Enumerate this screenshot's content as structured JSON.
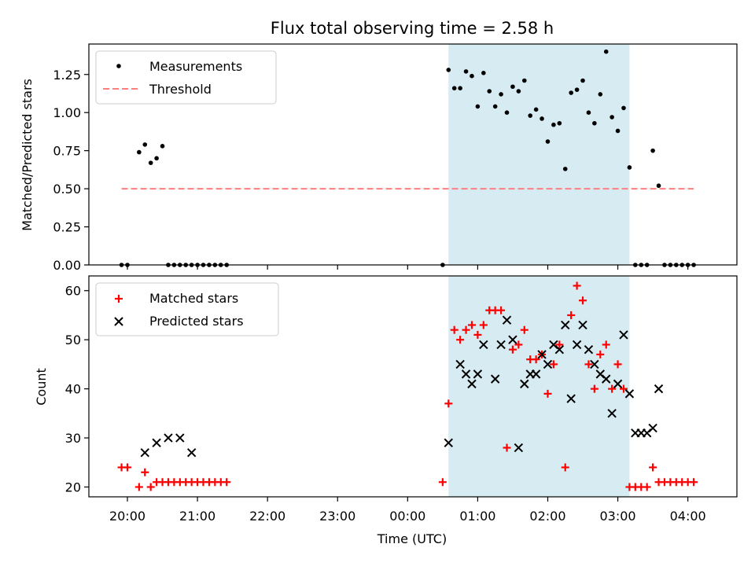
{
  "chart_data": [
    {
      "type": "scatter",
      "title": "Flux total observing time = 2.58 h",
      "xlabel": "",
      "ylabel": "Matched/Predicted stars",
      "x_unit": "minutes after 00:00 UTC (negative = previous day)",
      "xlim": [
        -273,
        282
      ],
      "ylim": [
        0,
        1.45
      ],
      "yticks": [
        0.0,
        0.25,
        0.5,
        0.75,
        1.0,
        1.25
      ],
      "ytick_labels": [
        "0.00",
        "0.25",
        "0.50",
        "0.75",
        "1.00",
        "1.25"
      ],
      "shaded_region": {
        "x_start": 35,
        "x_end": 190,
        "color": "#add8e6"
      },
      "legend_position": "upper left",
      "series": [
        {
          "name": "Measurements",
          "marker": "dot",
          "color": "#000000",
          "x": [
            -245,
            -240,
            -230,
            -225,
            -220,
            -215,
            -210,
            -205,
            -200,
            -195,
            -190,
            -185,
            -180,
            -175,
            -170,
            -165,
            -160,
            -155,
            30,
            35,
            40,
            45,
            50,
            55,
            60,
            65,
            70,
            75,
            80,
            85,
            90,
            95,
            100,
            105,
            110,
            115,
            120,
            125,
            130,
            135,
            140,
            145,
            150,
            155,
            160,
            165,
            170,
            175,
            180,
            185,
            190,
            195,
            200,
            205,
            210,
            215,
            220,
            225,
            230,
            235,
            240,
            245
          ],
          "y": [
            0,
            0,
            0.74,
            0.79,
            0.67,
            0.7,
            0.78,
            0,
            0,
            0,
            0,
            0,
            0,
            0,
            0,
            0,
            0,
            0,
            0,
            1.28,
            1.16,
            1.16,
            1.27,
            1.24,
            1.04,
            1.26,
            1.14,
            1.04,
            1.12,
            1.0,
            1.17,
            1.14,
            1.21,
            0.98,
            1.02,
            0.96,
            0.81,
            0.92,
            0.93,
            0.63,
            1.13,
            1.15,
            1.21,
            1.0,
            0.93,
            1.12,
            1.4,
            0.97,
            0.88,
            1.03,
            0.64,
            0,
            0,
            0,
            0.75,
            0.52,
            0,
            0,
            0,
            0,
            0,
            0
          ]
        },
        {
          "name": "Threshold",
          "style": "dashed",
          "color": "#ff7f7f",
          "x": [
            -245,
            245
          ],
          "y": [
            0.5,
            0.5
          ]
        }
      ]
    },
    {
      "type": "scatter",
      "title": "",
      "xlabel": "Time (UTC)",
      "ylabel": "Count",
      "x_unit": "minutes after 00:00 UTC (negative = previous day)",
      "xlim": [
        -273,
        282
      ],
      "ylim": [
        18,
        63
      ],
      "yticks": [
        20,
        30,
        40,
        50,
        60
      ],
      "ytick_labels": [
        "20",
        "30",
        "40",
        "50",
        "60"
      ],
      "xticks": [
        -240,
        -180,
        -120,
        -60,
        0,
        60,
        120,
        180,
        240
      ],
      "xtick_labels": [
        "20:00",
        "21:00",
        "22:00",
        "23:00",
        "00:00",
        "01:00",
        "02:00",
        "03:00",
        "04:00"
      ],
      "shaded_region": {
        "x_start": 35,
        "x_end": 190,
        "color": "#add8e6"
      },
      "legend_position": "upper left",
      "series": [
        {
          "name": "Matched stars",
          "marker": "plus",
          "color": "#ff0000",
          "x": [
            -245,
            -240,
            -230,
            -225,
            -220,
            -215,
            -210,
            -205,
            -200,
            -195,
            -190,
            -185,
            -180,
            -175,
            -170,
            -165,
            -160,
            -155,
            30,
            35,
            40,
            45,
            50,
            55,
            60,
            65,
            70,
            75,
            80,
            85,
            90,
            95,
            100,
            105,
            110,
            115,
            120,
            125,
            130,
            135,
            140,
            145,
            150,
            155,
            160,
            165,
            170,
            175,
            180,
            185,
            190,
            195,
            200,
            205,
            210,
            215,
            220,
            225,
            230,
            235,
            240,
            245
          ],
          "y": [
            24,
            24,
            20,
            23,
            20,
            21,
            21,
            21,
            21,
            21,
            21,
            21,
            21,
            21,
            21,
            21,
            21,
            21,
            21,
            37,
            52,
            50,
            52,
            53,
            51,
            53,
            56,
            56,
            56,
            28,
            48,
            49,
            52,
            46,
            46,
            47,
            39,
            45,
            49,
            24,
            55,
            61,
            58,
            45,
            40,
            47,
            49,
            40,
            45,
            40,
            20,
            20,
            20,
            20,
            24,
            21,
            21,
            21,
            21,
            21,
            21,
            21
          ]
        },
        {
          "name": "Predicted stars",
          "marker": "x",
          "color": "#000000",
          "x": [
            -225,
            -215,
            -205,
            -195,
            -185,
            35,
            45,
            50,
            55,
            60,
            65,
            75,
            80,
            85,
            90,
            95,
            100,
            105,
            110,
            115,
            120,
            125,
            130,
            135,
            140,
            145,
            150,
            155,
            160,
            165,
            170,
            175,
            180,
            185,
            190,
            195,
            200,
            205,
            210,
            215
          ],
          "y": [
            27,
            29,
            30,
            30,
            27,
            29,
            45,
            43,
            41,
            43,
            49,
            42,
            49,
            54,
            50,
            28,
            41,
            43,
            43,
            47,
            45,
            49,
            48,
            53,
            38,
            49,
            53,
            48,
            45,
            43,
            42,
            35,
            41,
            51,
            39,
            31,
            31,
            31,
            32,
            40
          ]
        }
      ]
    }
  ]
}
